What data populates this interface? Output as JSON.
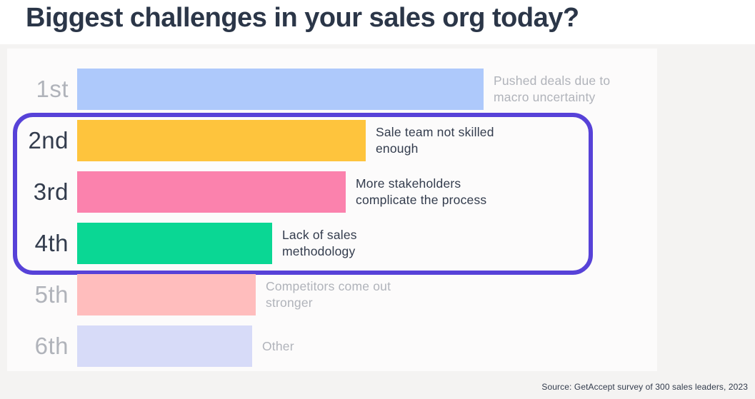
{
  "header": {
    "title": "Biggest challenges in your sales org today?"
  },
  "footer": {
    "source": "Source: GetAccept survey of 300 sales leaders, 2023"
  },
  "colors": {
    "title_text": "#2b3648",
    "emphasized_text": "#333c4d",
    "muted_text": "#b0b3ba",
    "page_bg": "#f4f3f2",
    "panel_bg": "#fcfbfb",
    "highlight_border": "#5742d8"
  },
  "highlight": {
    "shape": "rounded-rectangle-outline",
    "ranks_enclosed": [
      "2nd",
      "3rd",
      "4th"
    ]
  },
  "chart_data": {
    "type": "bar",
    "orientation": "horizontal",
    "title": "Biggest challenges in your sales org today?",
    "xlabel": "",
    "ylabel": "",
    "axis_note": "ranking chart, no numeric axis or gridlines shown",
    "legend": "none",
    "categories": [
      "1st",
      "2nd",
      "3rd",
      "4th",
      "5th",
      "6th"
    ],
    "rows": [
      {
        "rank": "1st",
        "label": "Pushed deals due to macro uncertainty",
        "relative_length_pct": 100,
        "bar_color": "#aec9fb",
        "emphasized": false
      },
      {
        "rank": "2nd",
        "label": "Sale team not skilled enough",
        "relative_length_pct": 71,
        "bar_color": "#fec43d",
        "emphasized": true
      },
      {
        "rank": "3rd",
        "label": "More stakeholders complicate the process",
        "relative_length_pct": 66,
        "bar_color": "#fb82ad",
        "emphasized": true
      },
      {
        "rank": "4th",
        "label": "Lack of sales methodology",
        "relative_length_pct": 48,
        "bar_color": "#0ad794",
        "emphasized": true
      },
      {
        "rank": "5th",
        "label": "Competitors come out stronger",
        "relative_length_pct": 44,
        "bar_color": "#ffbdbd",
        "emphasized": false
      },
      {
        "rank": "6th",
        "label": "Other",
        "relative_length_pct": 43,
        "bar_color": "#d7dbf8",
        "emphasized": false
      }
    ]
  }
}
